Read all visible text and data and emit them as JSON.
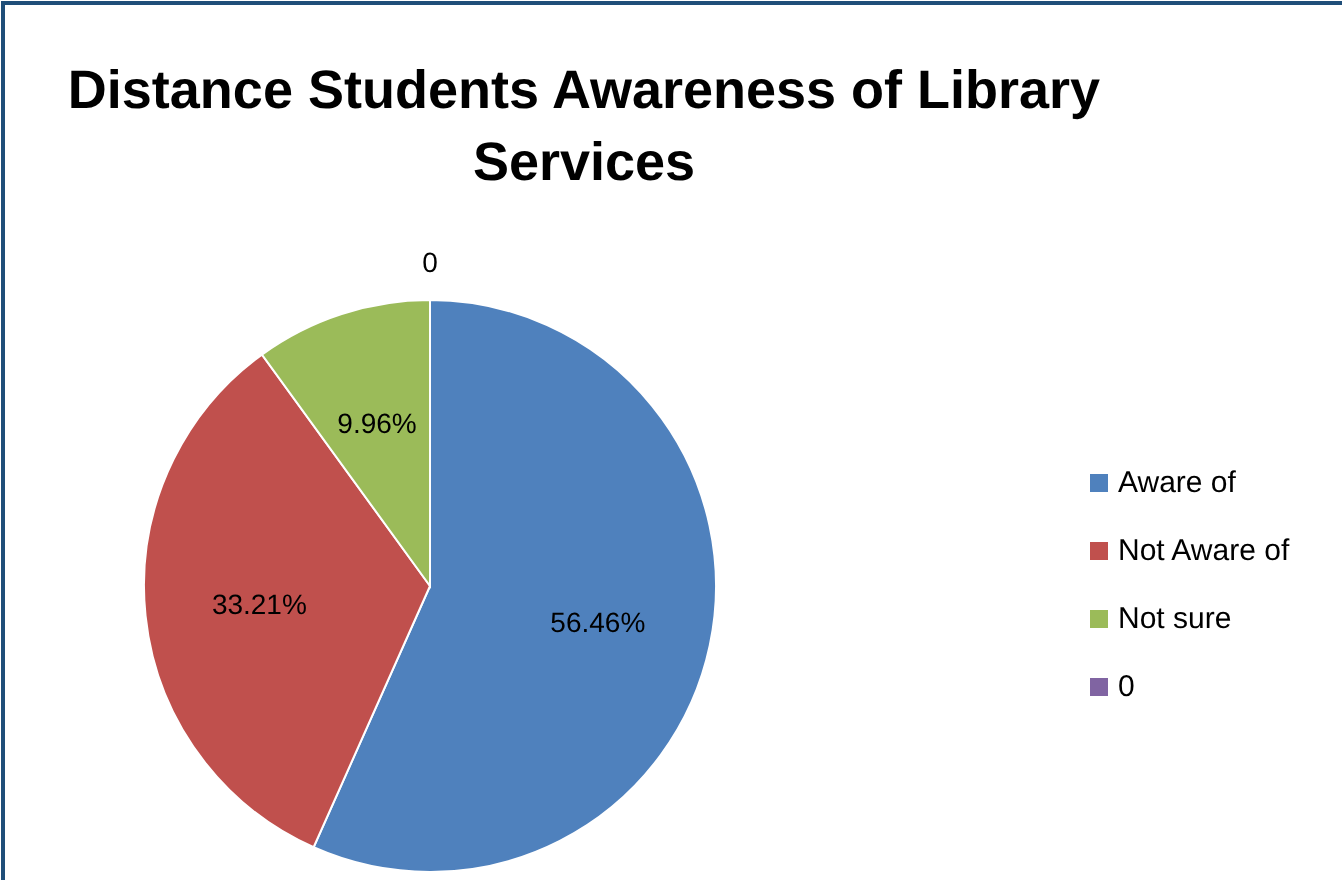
{
  "chart_data": {
    "type": "pie",
    "title": "Distance Students Awareness of Library Services",
    "categories": [
      "Aware of",
      "Not Aware of",
      "Not sure",
      "0"
    ],
    "values": [
      56.46,
      33.21,
      9.96,
      0
    ],
    "colors": [
      "#4f81bd",
      "#c0504d",
      "#9bbb59",
      "#8064a2"
    ],
    "value_labels": [
      "56.46%",
      "33.21%",
      "9.96%",
      "0"
    ],
    "legend": "right"
  }
}
